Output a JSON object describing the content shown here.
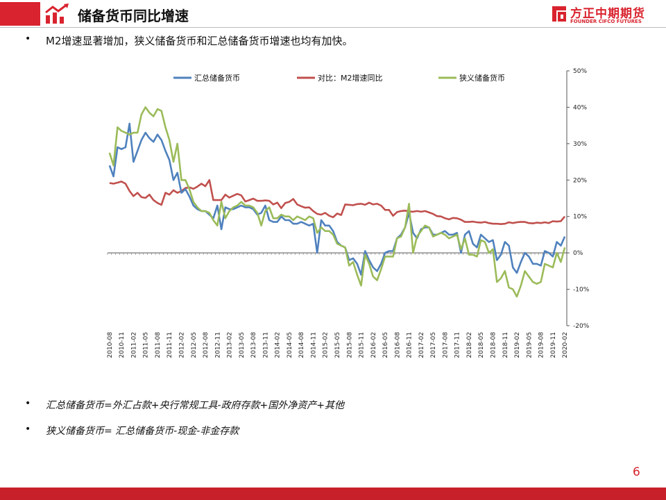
{
  "header": {
    "title": "储备货币同比增速"
  },
  "brand": {
    "name_cn": "方正中期期货",
    "name_en": "FOUNDER CIFCO FUTURES"
  },
  "bullets": {
    "top": "M2增速显著增加，狭义储备货币和汇总储备货币增速也均有加快。",
    "def1": "汇总储备货币=外汇占款+央行常规工具-政府存款+国外净资产+其他",
    "def2": "狭义储备货币= 汇总储备货币-现金-非金存款"
  },
  "page_number": "6",
  "colors": {
    "accent": "#d9232e",
    "s_total": "#4f81bd",
    "s_m2": "#c0504d",
    "s_narrow": "#9bbb59"
  },
  "chart_data": {
    "type": "line",
    "ylim": [
      -0.2,
      0.5
    ],
    "y_ticks": [
      "50%",
      "40%",
      "30%",
      "20%",
      "10%",
      "0%",
      "-10%",
      "-20%"
    ],
    "y_tick_values": [
      0.5,
      0.4,
      0.3,
      0.2,
      0.1,
      0.0,
      -0.1,
      -0.2
    ],
    "x_start": "2010-08",
    "x_tick_labels": [
      "2010-08",
      "2010-11",
      "2011-02",
      "2011-05",
      "2011-08",
      "2011-11",
      "2012-02",
      "2012-05",
      "2012-08",
      "2012-11",
      "2013-02",
      "2013-05",
      "2013-08",
      "2013-11",
      "2014-02",
      "2014-05",
      "2014-08",
      "2014-11",
      "2015-02",
      "2015-05",
      "2015-08",
      "2015-11",
      "2016-02",
      "2016-05",
      "2016-08",
      "2016-11",
      "2017-02",
      "2017-05",
      "2017-08",
      "2017-11",
      "2018-02",
      "2018-05",
      "2018-08",
      "2018-11",
      "2019-02",
      "2019-05",
      "2019-08",
      "2019-11",
      "2020-02"
    ],
    "legend_position": "top",
    "series": [
      {
        "name": "汇总储备货币",
        "color": "#4f81bd",
        "values": [
          0.24,
          0.21,
          0.29,
          0.285,
          0.29,
          0.355,
          0.25,
          0.28,
          0.31,
          0.33,
          0.315,
          0.305,
          0.325,
          0.31,
          0.28,
          0.255,
          0.2,
          0.22,
          0.165,
          0.175,
          0.155,
          0.13,
          0.12,
          0.115,
          0.115,
          0.105,
          0.095,
          0.13,
          0.065,
          0.125,
          0.12,
          0.12,
          0.125,
          0.13,
          0.125,
          0.125,
          0.12,
          0.105,
          0.11,
          0.13,
          0.09,
          0.085,
          0.085,
          0.1,
          0.09,
          0.09,
          0.08,
          0.08,
          0.085,
          0.08,
          0.075,
          0.08,
          0.0,
          0.09,
          0.075,
          0.075,
          0.06,
          0.03,
          0.02,
          0.015,
          -0.02,
          -0.015,
          -0.03,
          -0.06,
          0.005,
          -0.02,
          -0.04,
          -0.05,
          -0.03,
          0.0,
          0.005,
          0.005,
          0.04,
          0.05,
          0.07,
          0.11,
          0.055,
          0.04,
          0.065,
          0.07,
          0.07,
          0.05,
          0.05,
          0.055,
          0.06,
          0.05,
          0.05,
          0.055,
          0.0,
          0.05,
          0.06,
          0.025,
          0.015,
          0.05,
          0.04,
          0.03,
          0.035,
          -0.02,
          -0.005,
          0.03,
          0.02,
          -0.04,
          -0.055,
          -0.025,
          0.0,
          -0.01,
          -0.03,
          -0.03,
          -0.035,
          0.005,
          0.0,
          -0.01,
          0.03,
          0.02,
          0.045
        ]
      },
      {
        "name": "对比：M2增速同比",
        "color": "#c0504d",
        "values": [
          0.192,
          0.19,
          0.193,
          0.196,
          0.19,
          0.17,
          0.156,
          0.165,
          0.153,
          0.151,
          0.16,
          0.145,
          0.137,
          0.132,
          0.165,
          0.16,
          0.172,
          0.165,
          0.17,
          0.178,
          0.18,
          0.176,
          0.182,
          0.19,
          0.183,
          0.2,
          0.145,
          0.145,
          0.145,
          0.16,
          0.152,
          0.157,
          0.162,
          0.158,
          0.141,
          0.145,
          0.149,
          0.143,
          0.143,
          0.144,
          0.143,
          0.133,
          0.138,
          0.123,
          0.137,
          0.14,
          0.148,
          0.133,
          0.128,
          0.124,
          0.125,
          0.115,
          0.107,
          0.105,
          0.11,
          0.102,
          0.098,
          0.108,
          0.104,
          0.133,
          0.132,
          0.131,
          0.134,
          0.135,
          0.132,
          0.138,
          0.133,
          0.135,
          0.13,
          0.118,
          0.118,
          0.102,
          0.112,
          0.115,
          0.116,
          0.114,
          0.113,
          0.115,
          0.113,
          0.115,
          0.111,
          0.107,
          0.101,
          0.1,
          0.095,
          0.092,
          0.096,
          0.095,
          0.091,
          0.085,
          0.085,
          0.086,
          0.084,
          0.083,
          0.085,
          0.082,
          0.08,
          0.08,
          0.079,
          0.08,
          0.084,
          0.082,
          0.084,
          0.085,
          0.085,
          0.082,
          0.081,
          0.083,
          0.082,
          0.084,
          0.082,
          0.087,
          0.086,
          0.087,
          0.1
        ]
      },
      {
        "name": "狭义储备货币",
        "color": "#9bbb59",
        "values": [
          0.275,
          0.24,
          0.345,
          0.335,
          0.33,
          0.325,
          0.33,
          0.33,
          0.38,
          0.4,
          0.385,
          0.375,
          0.395,
          0.39,
          0.345,
          0.31,
          0.25,
          0.3,
          0.2,
          0.2,
          0.175,
          0.14,
          0.125,
          0.115,
          0.115,
          0.11,
          0.09,
          0.075,
          0.14,
          0.095,
          0.115,
          0.125,
          0.13,
          0.14,
          0.13,
          0.13,
          0.125,
          0.11,
          0.075,
          0.115,
          0.125,
          0.095,
          0.095,
          0.105,
          0.1,
          0.1,
          0.09,
          0.1,
          0.095,
          0.09,
          0.1,
          0.095,
          0.055,
          0.07,
          0.06,
          0.06,
          0.05,
          0.025,
          0.02,
          0.015,
          -0.035,
          -0.025,
          -0.06,
          -0.09,
          -0.005,
          -0.03,
          -0.065,
          -0.075,
          -0.045,
          -0.01,
          -0.01,
          -0.01,
          0.04,
          0.045,
          0.07,
          0.135,
          0.0,
          0.045,
          0.06,
          0.075,
          0.07,
          0.045,
          0.05,
          0.055,
          0.05,
          0.04,
          0.045,
          0.05,
          0.01,
          0.04,
          -0.005,
          -0.005,
          -0.01,
          0.035,
          0.03,
          0.0,
          0.01,
          -0.08,
          -0.07,
          -0.05,
          -0.095,
          -0.1,
          -0.12,
          -0.09,
          -0.05,
          -0.065,
          -0.08,
          -0.085,
          -0.08,
          -0.03,
          -0.035,
          -0.04,
          0.0,
          -0.025,
          0.015
        ]
      }
    ]
  }
}
